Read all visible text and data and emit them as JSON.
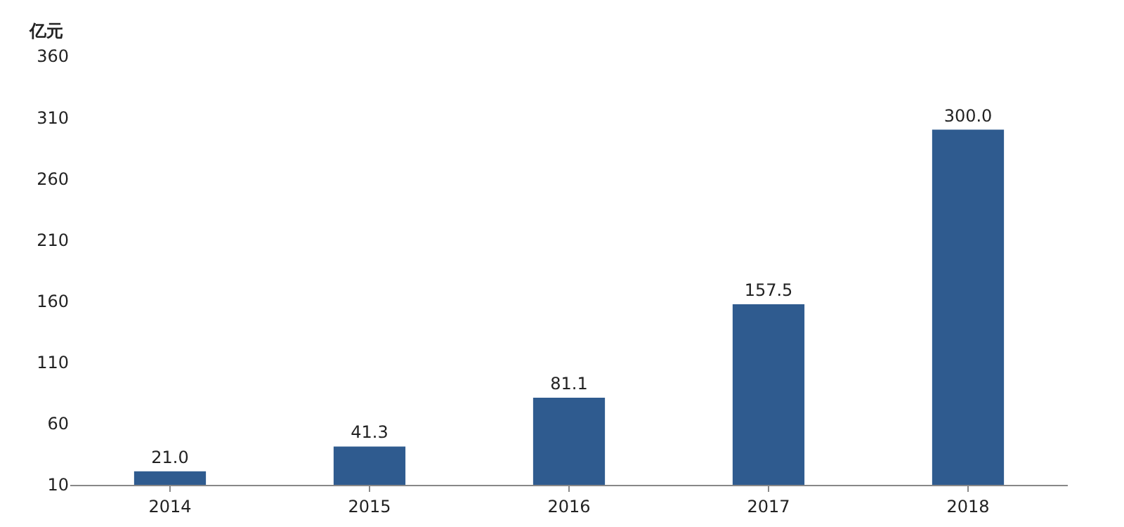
{
  "chart_data": {
    "type": "bar",
    "ylabel": "亿元",
    "categories": [
      "2014",
      "2015",
      "2016",
      "2017",
      "2018"
    ],
    "values": [
      21.0,
      41.3,
      81.1,
      157.5,
      300.0
    ],
    "value_labels": [
      "21.0",
      "41.3",
      "81.1",
      "157.5",
      "300.0"
    ],
    "color": "#2f5b8f",
    "ylim": [
      10,
      360
    ],
    "yticks": [
      10,
      60,
      110,
      160,
      210,
      260,
      310,
      360
    ],
    "grid": false
  }
}
